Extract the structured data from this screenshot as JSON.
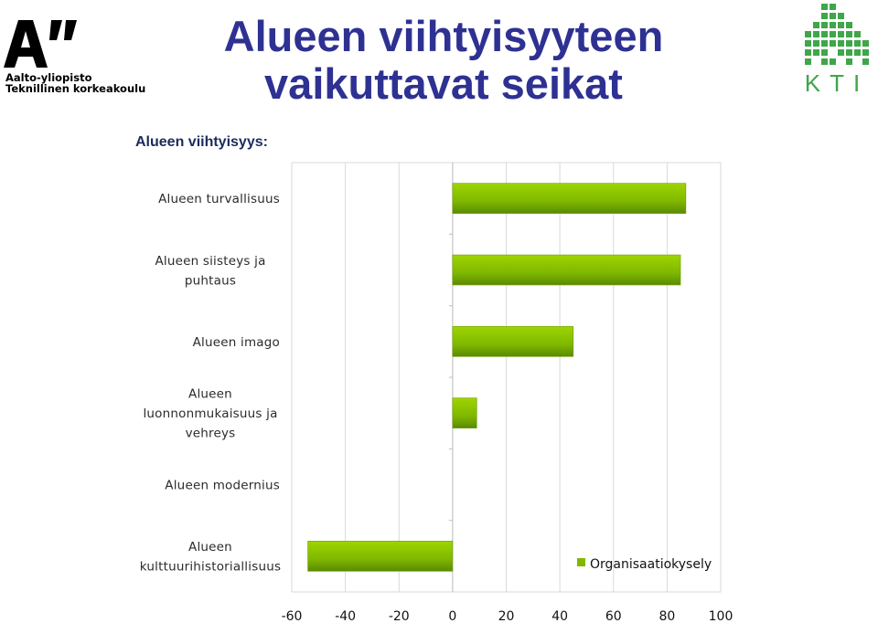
{
  "header": {
    "title_line1": "Alueen viihtyisyyteen",
    "title_line2": "vaikuttavat seikat",
    "subtitle": "Alueen viihtyisyys:"
  },
  "logos": {
    "aalto_line1": "Aalto-yliopisto",
    "aalto_line2": "Teknillinen korkeakoulu",
    "kti": "KTI"
  },
  "colors": {
    "title": "#2e3192",
    "bar": "#7fb800",
    "bar_dark": "#5a8a00",
    "gridline": "#d9d9d9",
    "kti_green": "#3fa64a"
  },
  "chart_data": {
    "type": "bar",
    "orientation": "horizontal",
    "categories": [
      [
        "Alueen turvallisuus"
      ],
      [
        "Alueen siisteys ja",
        "puhtaus"
      ],
      [
        "Alueen imago"
      ],
      [
        "Alueen",
        "luonnonmukaisuus ja",
        "vehreys"
      ],
      [
        "Alueen modernius"
      ],
      [
        "Alueen",
        "kulttuurihistoriallisuus"
      ]
    ],
    "series": [
      {
        "name": "Organisaatiokysely",
        "values": [
          87,
          85,
          45,
          9,
          0,
          -54
        ]
      }
    ],
    "xlim": [
      -60,
      100
    ],
    "xticks": [
      -60,
      -40,
      -20,
      0,
      20,
      40,
      60,
      80,
      100
    ],
    "grid": true,
    "legend": "bottom-right"
  }
}
